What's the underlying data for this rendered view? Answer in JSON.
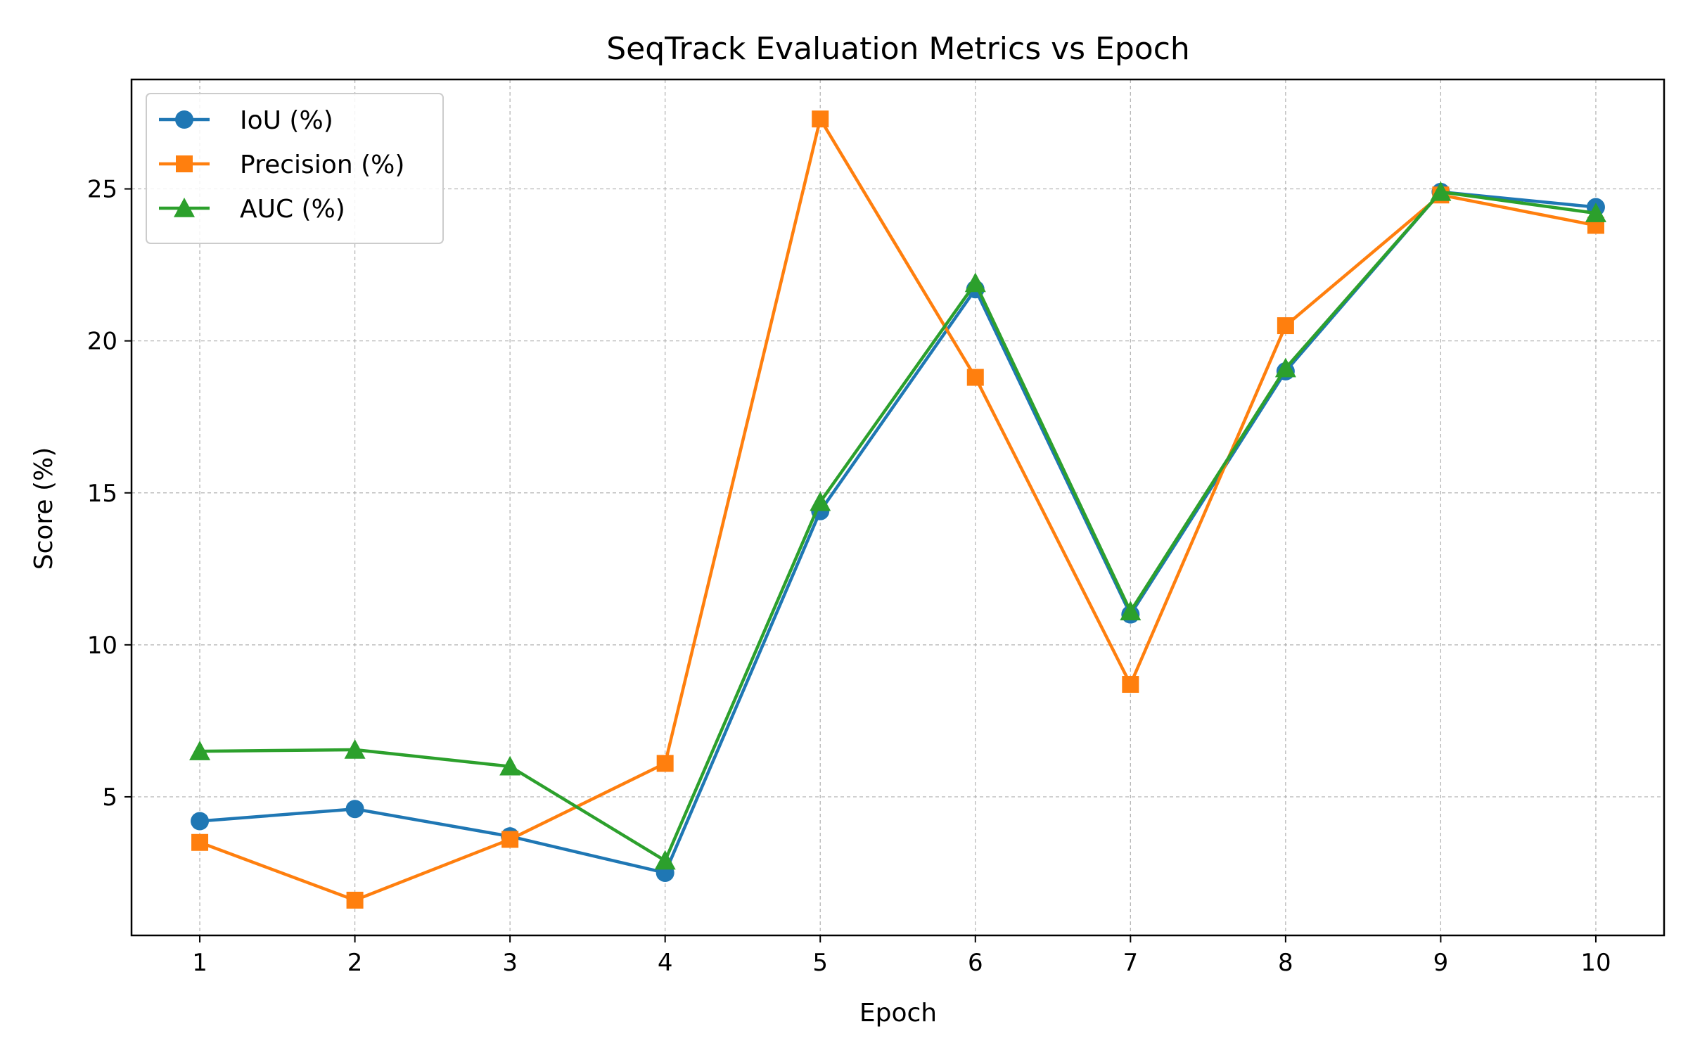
{
  "chart_data": {
    "type": "line",
    "title": "SeqTrack Evaluation Metrics vs Epoch",
    "xlabel": "Epoch",
    "ylabel": "Score (%)",
    "x": [
      1,
      2,
      3,
      4,
      5,
      6,
      7,
      8,
      9,
      10
    ],
    "xticks": [
      "1",
      "2",
      "3",
      "4",
      "5",
      "6",
      "7",
      "8",
      "9",
      "10"
    ],
    "yticks": [
      5,
      10,
      15,
      20,
      25
    ],
    "xlim": [
      0.56,
      10.44
    ],
    "ylim": [
      0.44,
      28.6
    ],
    "grid": true,
    "legend_position": "upper-left",
    "series": [
      {
        "name": "IoU (%)",
        "color": "#1f77b4",
        "marker": "circle",
        "values": [
          4.2,
          4.6,
          3.7,
          2.5,
          14.4,
          21.7,
          11.0,
          19.0,
          24.9,
          24.4
        ]
      },
      {
        "name": "Precision (%)",
        "color": "#ff7f0e",
        "marker": "square",
        "values": [
          3.5,
          1.6,
          3.6,
          6.1,
          27.3,
          18.8,
          8.7,
          20.5,
          24.8,
          23.8
        ]
      },
      {
        "name": "AUC (%)",
        "color": "#2ca02c",
        "marker": "triangle",
        "values": [
          6.5,
          6.55,
          6.0,
          2.9,
          14.7,
          21.9,
          11.1,
          19.1,
          24.9,
          24.2
        ]
      }
    ]
  }
}
